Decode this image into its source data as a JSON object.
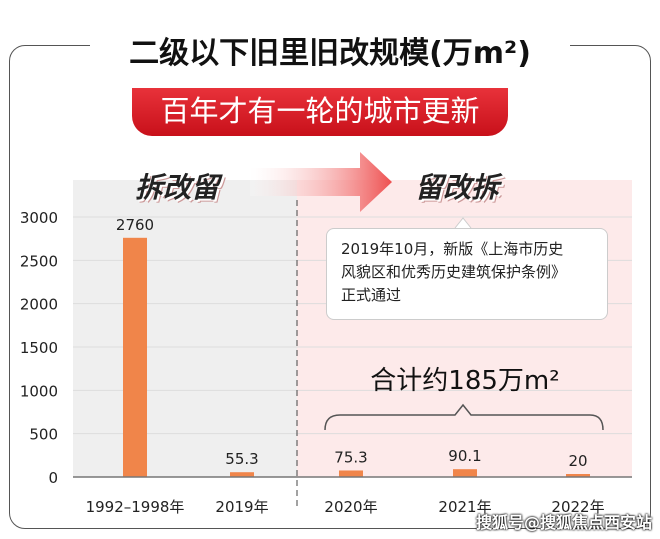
{
  "chart_data": {
    "type": "bar",
    "title": "二级以下旧里旧改规模(万m²)",
    "subtitle": "百年才有一轮的城市更新",
    "categories": [
      "1992–1998年",
      "2019年",
      "2020年",
      "2021年",
      "2022年"
    ],
    "values": [
      2760,
      55.3,
      75.3,
      90.1,
      20
    ],
    "data_labels": [
      "2760",
      "55.3",
      "75.3",
      "90.1",
      "20"
    ],
    "ylim": [
      0,
      3000
    ],
    "yticks": [
      0,
      500,
      1000,
      1500,
      2000,
      2500,
      3000
    ],
    "grid": true,
    "bar_color": "#f0854a",
    "annotations": {
      "left_phase": "拆改留",
      "right_phase": "留改拆",
      "note_lines": [
        "2019年10月，新版《上海市历史",
        "风貌区和优秀历史建筑保护条例》",
        "正式通过"
      ],
      "total": "合计约185万m²"
    }
  },
  "watermark": "搜狐号@搜狐焦点西安站"
}
